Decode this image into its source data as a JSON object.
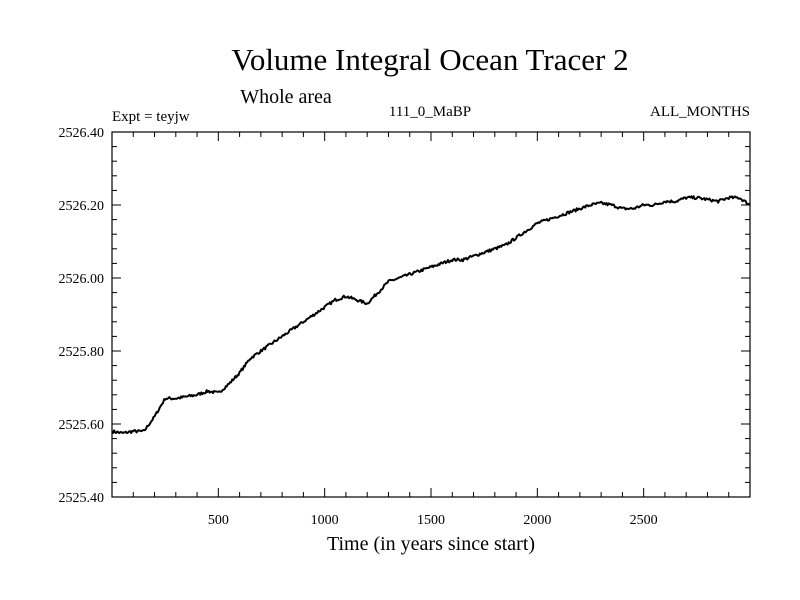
{
  "chart_data": {
    "type": "line",
    "title": "Volume Integral Ocean Tracer 2",
    "subtitle": "Whole area",
    "annotations": {
      "left": "Expt = teyjw",
      "center": "111_0_MaBP",
      "right": "ALL_MONTHS"
    },
    "xlabel": "Time (in years since start)",
    "ylabel": "",
    "xlim": [
      0,
      3000
    ],
    "ylim": [
      2525.4,
      2526.4
    ],
    "xticks": [
      500,
      1000,
      1500,
      2000,
      2500
    ],
    "xtick_labels": [
      "500",
      "1000",
      "1500",
      "2000",
      "2500"
    ],
    "yticks": [
      2525.4,
      2525.6,
      2525.8,
      2526.0,
      2526.2,
      2526.4
    ],
    "ytick_labels": [
      "2525.40",
      "2525.60",
      "2525.80",
      "2526.00",
      "2526.20",
      "2526.40"
    ],
    "grid": false,
    "series": [
      {
        "name": "Volume Integral Ocean Tracer 2",
        "color": "#000000",
        "x": [
          0,
          50,
          100,
          150,
          200,
          250,
          300,
          350,
          400,
          450,
          500,
          550,
          600,
          650,
          700,
          750,
          800,
          850,
          900,
          950,
          1000,
          1050,
          1100,
          1150,
          1200,
          1250,
          1300,
          1350,
          1400,
          1450,
          1500,
          1550,
          1600,
          1650,
          1700,
          1750,
          1800,
          1850,
          1900,
          1950,
          2000,
          2050,
          2100,
          2150,
          2200,
          2250,
          2300,
          2350,
          2400,
          2450,
          2500,
          2550,
          2600,
          2650,
          2700,
          2750,
          2800,
          2850,
          2900,
          2950,
          3000
        ],
        "values": [
          2525.58,
          2525.575,
          2525.58,
          2525.58,
          2525.62,
          2525.67,
          2525.67,
          2525.675,
          2525.68,
          2525.69,
          2525.685,
          2525.71,
          2525.74,
          2525.78,
          2525.8,
          2525.82,
          2525.84,
          2525.86,
          2525.88,
          2525.9,
          2525.92,
          2525.94,
          2525.95,
          2525.94,
          2525.93,
          2525.96,
          2525.99,
          2526.0,
          2526.01,
          2526.02,
          2526.03,
          2526.04,
          2526.05,
          2526.05,
          2526.06,
          2526.07,
          2526.08,
          2526.09,
          2526.11,
          2526.13,
          2526.15,
          2526.16,
          2526.17,
          2526.18,
          2526.19,
          2526.2,
          2526.205,
          2526.2,
          2526.19,
          2526.19,
          2526.2,
          2526.2,
          2526.21,
          2526.21,
          2526.22,
          2526.22,
          2526.215,
          2526.21,
          2526.22,
          2526.22,
          2526.2
        ]
      }
    ]
  }
}
